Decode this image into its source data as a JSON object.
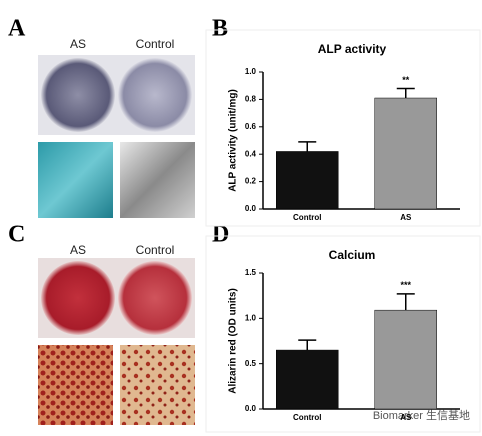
{
  "panels": {
    "a": {
      "letter": "A",
      "labels": [
        "AS",
        "Control"
      ]
    },
    "b": {
      "letter": "B"
    },
    "c": {
      "letter": "C",
      "labels": [
        "AS",
        "Control"
      ]
    },
    "d": {
      "letter": "D"
    }
  },
  "watermark": "Biomarker 生信基地",
  "chart_data": [
    {
      "type": "bar",
      "title": "ALP activity",
      "y_label": "ALP activity (unit/mg)",
      "categories": [
        "Control",
        "AS"
      ],
      "values": [
        0.42,
        0.81
      ],
      "error": [
        0.07,
        0.07
      ],
      "colors": [
        "#111111",
        "#999999"
      ],
      "annotations": [
        {
          "category": "AS",
          "text": "**"
        }
      ],
      "ylim": [
        0,
        1.0
      ],
      "yticks": [
        {
          "value": 0,
          "label": "0.0"
        },
        0.2,
        0.4,
        0.6,
        0.8,
        {
          "value": 1.0,
          "label": "1.0"
        }
      ]
    },
    {
      "type": "bar",
      "title": "Calcium",
      "y_label": "Alizarin red (OD units)",
      "categories": [
        "Control",
        "AS"
      ],
      "values": [
        0.65,
        1.09
      ],
      "error": [
        0.11,
        0.18
      ],
      "colors": [
        "#111111",
        "#999999"
      ],
      "annotations": [
        {
          "category": "AS",
          "text": "***"
        }
      ],
      "ylim": [
        0,
        1.5
      ],
      "yticks": [
        {
          "value": 0,
          "label": "0.0"
        },
        0.5,
        {
          "value": 1.0,
          "label": "1.0"
        },
        1.5
      ]
    }
  ]
}
